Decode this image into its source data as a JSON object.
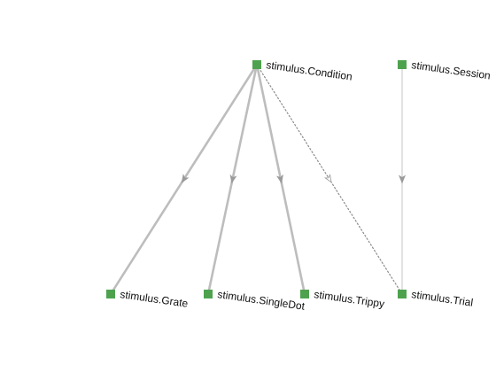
{
  "colors": {
    "node": "#4ea24e",
    "edge_strong": "#bdbdbd",
    "edge_light": "#c4c4c4",
    "edge_dotted": "#8a8a8a",
    "arrow": "#9a9a9a",
    "label": "#111111"
  },
  "nodes": [
    {
      "id": "condition",
      "label": "stimulus.Condition"
    },
    {
      "id": "session",
      "label": "stimulus.Session"
    },
    {
      "id": "grate",
      "label": "stimulus.Grate"
    },
    {
      "id": "singledot",
      "label": "stimulus.SingleDot"
    },
    {
      "id": "trippy",
      "label": "stimulus.Trippy"
    },
    {
      "id": "trial",
      "label": "stimulus.Trial"
    }
  ],
  "edges": [
    {
      "from": "condition",
      "to": "grate",
      "style": "part"
    },
    {
      "from": "condition",
      "to": "singledot",
      "style": "part"
    },
    {
      "from": "condition",
      "to": "trippy",
      "style": "part"
    },
    {
      "from": "condition",
      "to": "trial",
      "style": "dotted"
    },
    {
      "from": "session",
      "to": "trial",
      "style": "thin"
    }
  ]
}
